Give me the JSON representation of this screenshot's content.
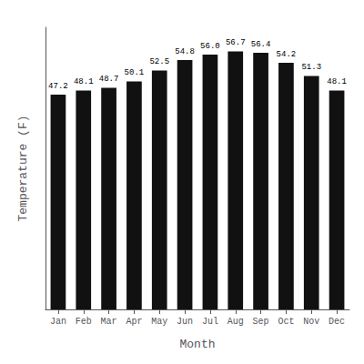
{
  "chart_data": {
    "type": "bar",
    "xlabel": "Month",
    "ylabel": "Temperature (F)",
    "categories": [
      "Jan",
      "Feb",
      "Mar",
      "Apr",
      "May",
      "Jun",
      "Jul",
      "Aug",
      "Sep",
      "Oct",
      "Nov",
      "Dec"
    ],
    "values": [
      47.2,
      48.1,
      48.7,
      50.1,
      52.5,
      54.8,
      56.0,
      56.7,
      56.4,
      54.2,
      51.3,
      48.1
    ],
    "value_labels": [
      "47.2",
      "48.1",
      "48.7",
      "50.1",
      "52.5",
      "54.8",
      "56.0",
      "56.7",
      "56.4",
      "54.2",
      "51.3",
      "48.1"
    ],
    "color": "#111111",
    "ylim": [
      0,
      62
    ],
    "grid": false,
    "data_labels": true,
    "tick_labels": "x"
  }
}
